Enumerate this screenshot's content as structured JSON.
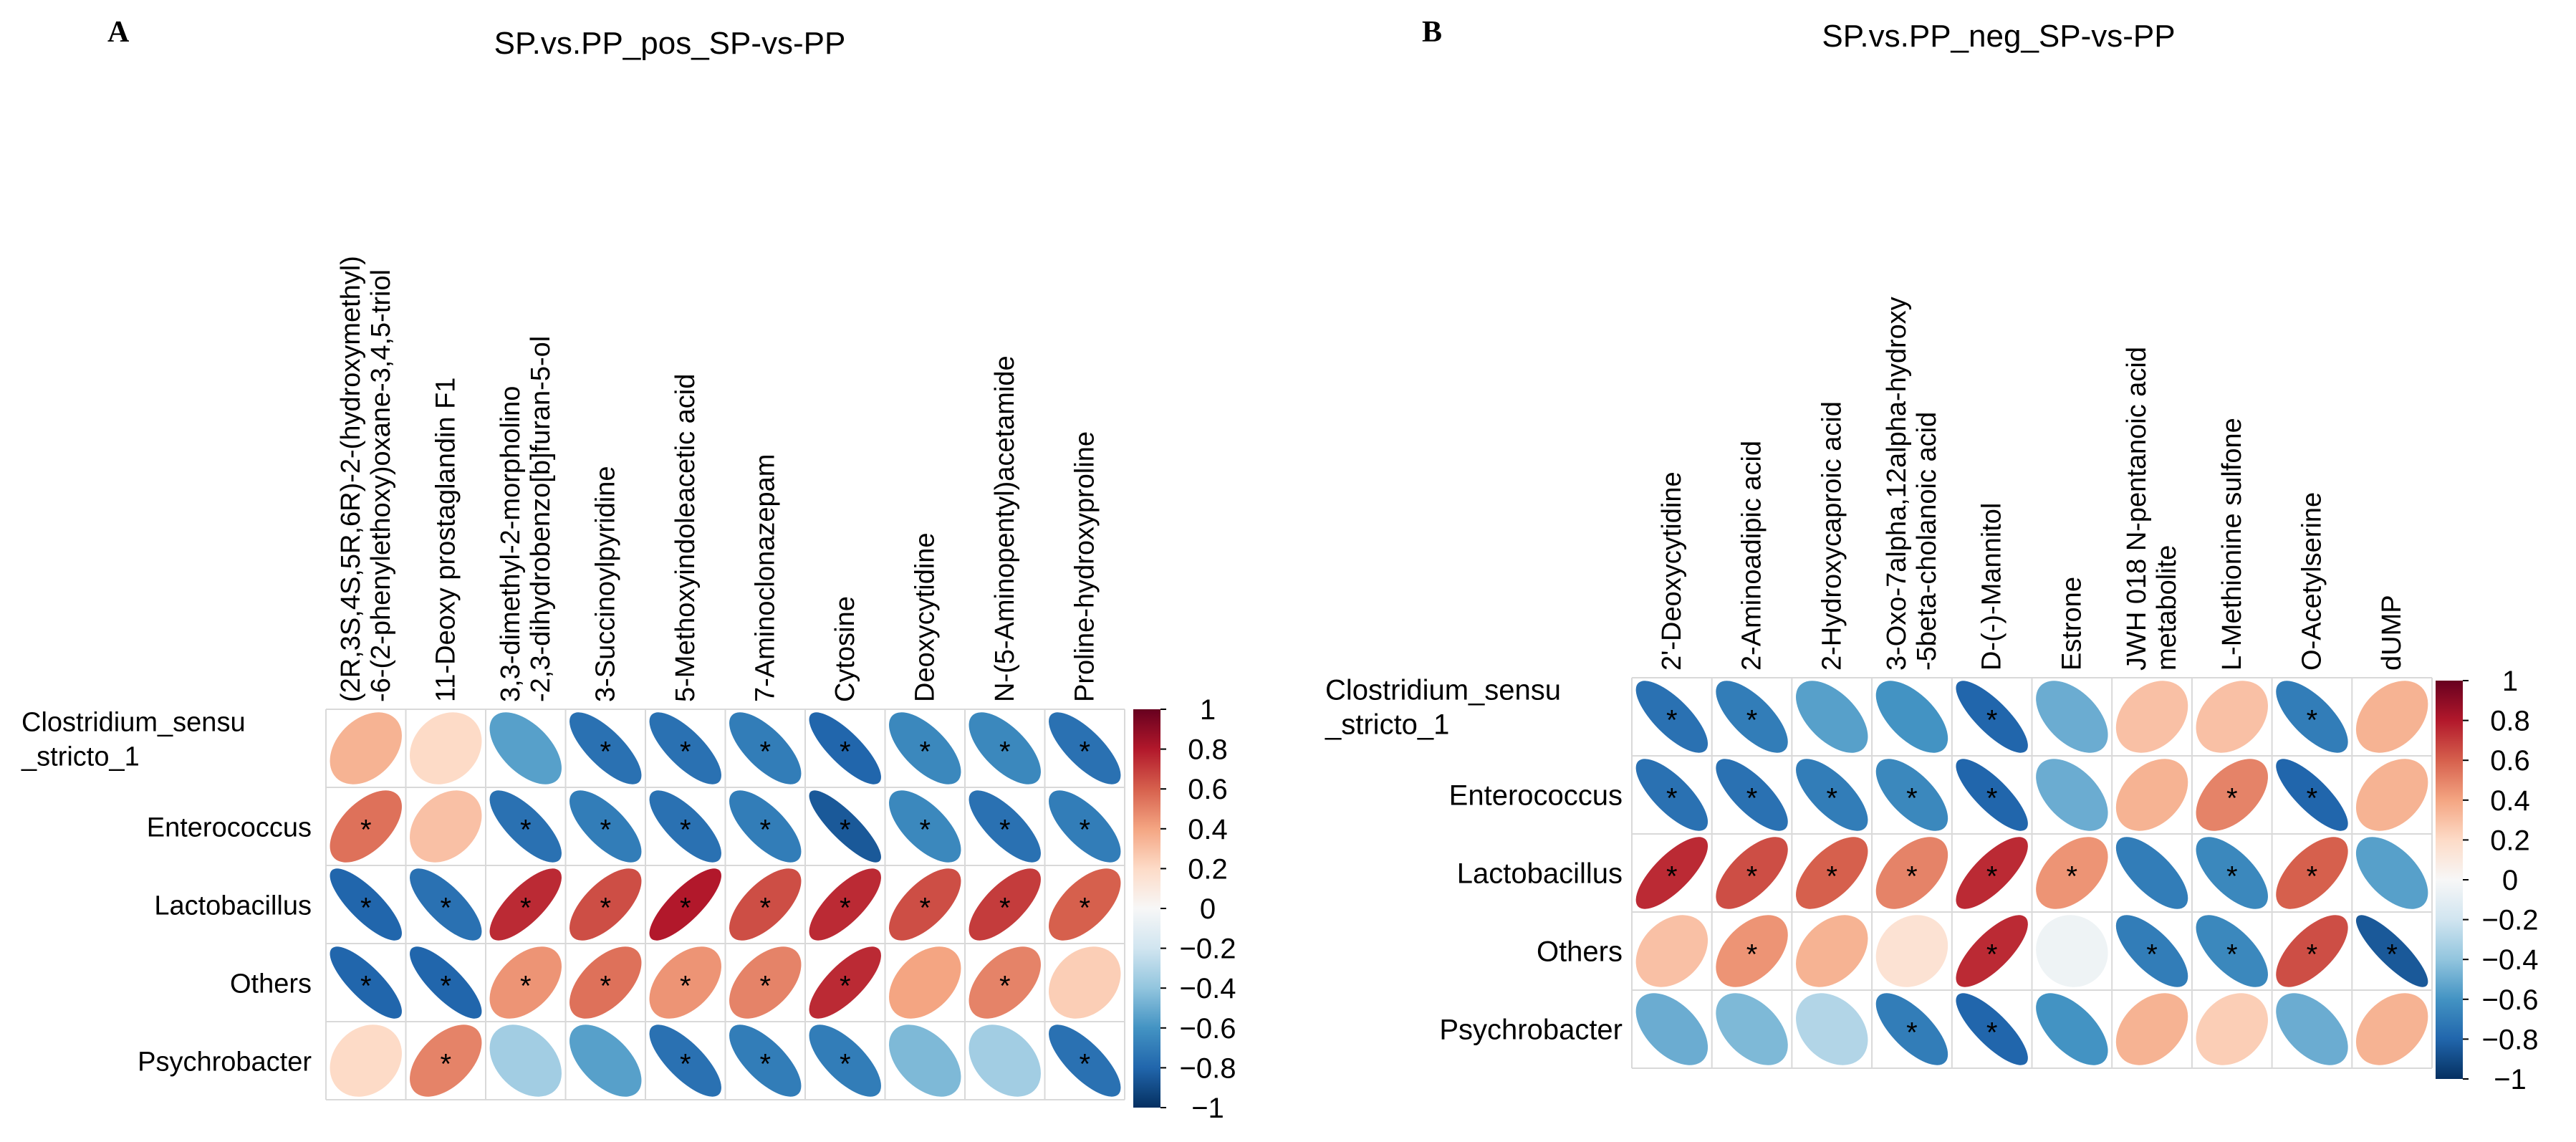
{
  "colors": {
    "scale": [
      "#053061",
      "#2166ac",
      "#4393c3",
      "#92c5de",
      "#d1e5f0",
      "#f7f7f7",
      "#fddbc7",
      "#f4a582",
      "#d6604d",
      "#b2182b",
      "#67001f"
    ],
    "grid": "#d9d9d9",
    "text": "#000000"
  },
  "chart_data": [
    {
      "type": "heatmap",
      "panel_label": "A",
      "title": "SP.vs.PP_pos_SP-vs-PP",
      "rows": [
        "Clostridium_sensu\n_stricto_1",
        "Enterococcus",
        "Lactobacillus",
        "Others",
        "Psychrobacter"
      ],
      "columns": [
        "(2R,3S,4S,5R,6R)-2-(hydroxymethyl)\n-6-(2-phenylethoxy)oxane-3,4,5-triol",
        "11-Deoxy prostaglandin F1",
        "3,3-dimethyl-2-morpholino\n-2,3-dihydrobenzo[b]furan-5-ol",
        "3-Succinoylpyridine",
        "5-Methoxyindoleacetic acid",
        "7-Aminoclonazepam",
        "Cytosine",
        "Deoxycytidine",
        "N-(5-Aminopentyl)acetamide",
        "Proline-hydroxyproline"
      ],
      "values": [
        [
          0.35,
          0.2,
          -0.55,
          -0.75,
          -0.75,
          -0.7,
          -0.8,
          -0.65,
          -0.65,
          -0.75
        ],
        [
          0.55,
          0.3,
          -0.75,
          -0.7,
          -0.75,
          -0.7,
          -0.85,
          -0.65,
          -0.75,
          -0.7
        ],
        [
          -0.8,
          -0.75,
          0.75,
          0.65,
          0.8,
          0.65,
          0.75,
          0.65,
          0.7,
          0.6
        ],
        [
          -0.8,
          -0.8,
          0.45,
          0.55,
          0.45,
          0.5,
          0.75,
          0.4,
          0.5,
          0.25
        ],
        [
          0.2,
          0.5,
          -0.35,
          -0.55,
          -0.75,
          -0.7,
          -0.7,
          -0.45,
          -0.35,
          -0.75
        ]
      ],
      "significant": [
        [
          false,
          false,
          false,
          true,
          true,
          true,
          true,
          true,
          true,
          true
        ],
        [
          true,
          false,
          true,
          true,
          true,
          true,
          true,
          true,
          true,
          true
        ],
        [
          true,
          true,
          true,
          true,
          true,
          true,
          true,
          true,
          true,
          true
        ],
        [
          true,
          true,
          true,
          true,
          true,
          true,
          true,
          false,
          true,
          false
        ],
        [
          false,
          true,
          false,
          false,
          true,
          true,
          true,
          false,
          false,
          true
        ]
      ],
      "colorbar_ticks": [
        "1",
        "0.8",
        "0.6",
        "0.4",
        "0.2",
        "0",
        "−0.2",
        "−0.4",
        "−0.6",
        "−0.8",
        "−1"
      ],
      "range": [
        -1,
        1
      ]
    },
    {
      "type": "heatmap",
      "panel_label": "B",
      "title": "SP.vs.PP_neg_SP-vs-PP",
      "rows": [
        "Clostridium_sensu\n_stricto_1",
        "Enterococcus",
        "Lactobacillus",
        "Others",
        "Psychrobacter"
      ],
      "columns": [
        "2'-Deoxycytidine",
        "2-Aminoadipic acid",
        "2-Hydroxycaproic acid",
        "3-Oxo-7alpha,12alpha-hydroxy\n-5beta-cholanoic acid",
        "D-(-)-Mannitol",
        "Estrone",
        "JWH 018 N-pentanoic acid\nmetabolite",
        "L-Methionine sulfone",
        "O-Acetylserine",
        "dUMP"
      ],
      "values": [
        [
          -0.75,
          -0.7,
          -0.55,
          -0.6,
          -0.8,
          -0.5,
          0.3,
          0.3,
          -0.7,
          0.35
        ],
        [
          -0.75,
          -0.75,
          -0.7,
          -0.65,
          -0.8,
          -0.5,
          0.35,
          0.5,
          -0.8,
          0.35
        ],
        [
          0.75,
          0.65,
          0.6,
          0.5,
          0.75,
          0.45,
          -0.7,
          -0.65,
          0.6,
          -0.55
        ],
        [
          0.3,
          0.45,
          0.35,
          0.15,
          0.75,
          -0.05,
          -0.7,
          -0.65,
          0.65,
          -0.85
        ],
        [
          -0.5,
          -0.45,
          -0.3,
          -0.7,
          -0.8,
          -0.6,
          0.35,
          0.25,
          -0.5,
          0.35
        ]
      ],
      "significant": [
        [
          true,
          true,
          false,
          false,
          true,
          false,
          false,
          false,
          true,
          false
        ],
        [
          true,
          true,
          true,
          true,
          true,
          false,
          false,
          true,
          true,
          false
        ],
        [
          true,
          true,
          true,
          true,
          true,
          true,
          false,
          true,
          true,
          false
        ],
        [
          false,
          true,
          false,
          false,
          true,
          false,
          true,
          true,
          true,
          true
        ],
        [
          false,
          false,
          false,
          true,
          true,
          false,
          false,
          false,
          false,
          false
        ]
      ],
      "colorbar_ticks": [
        "1",
        "0.8",
        "0.6",
        "0.4",
        "0.2",
        "0",
        "−0.2",
        "−0.4",
        "−0.6",
        "−0.8",
        "−1"
      ],
      "range": [
        -1,
        1
      ]
    }
  ]
}
